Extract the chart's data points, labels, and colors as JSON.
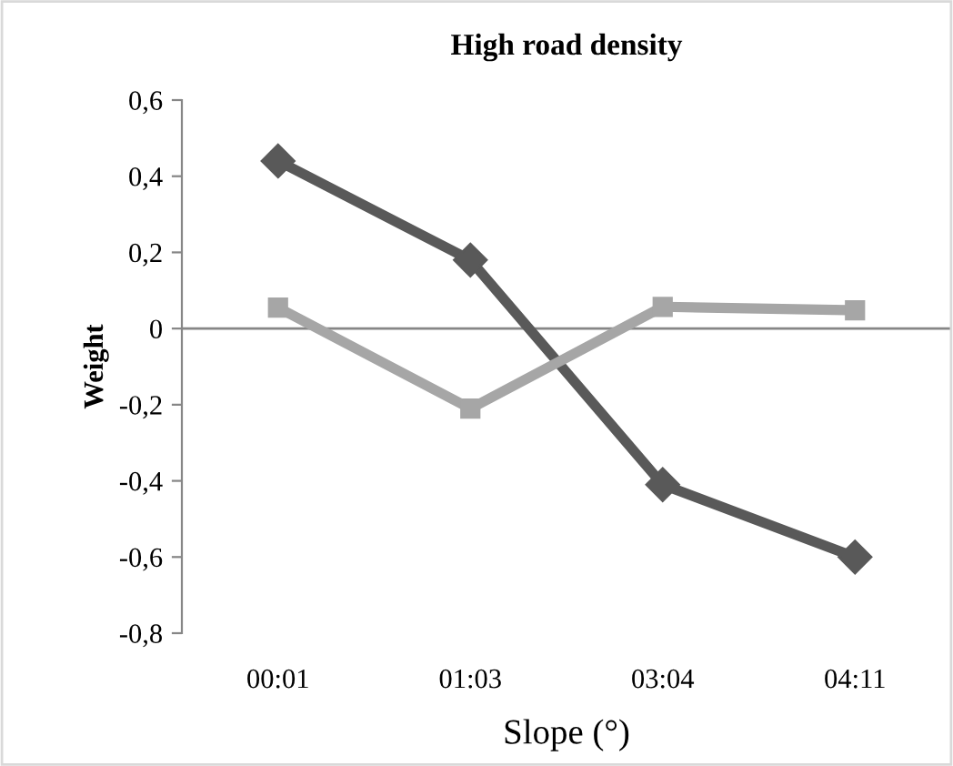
{
  "chart_data": {
    "type": "line",
    "title": "High road density",
    "xlabel": "Slope (°)",
    "ylabel": "Weight",
    "categories": [
      "00:01",
      "01:03",
      "03:04",
      "04:11"
    ],
    "series": [
      {
        "color": "#595959",
        "marker": "diamond",
        "values": [
          0.44,
          0.18,
          -0.41,
          -0.6
        ]
      },
      {
        "color": "#a6a6a6",
        "marker": "square",
        "values": [
          0.055,
          -0.21,
          0.057,
          0.048
        ]
      }
    ],
    "ylim": [
      -0.8,
      0.6
    ],
    "yticks": [
      {
        "value": -0.8,
        "label": "-0,8"
      },
      {
        "value": -0.6,
        "label": "-0,6"
      },
      {
        "value": -0.4,
        "label": "-0,4"
      },
      {
        "value": -0.2,
        "label": "-0,2"
      },
      0,
      {
        "value": 0.2,
        "label": "0,2"
      },
      {
        "value": 0.4,
        "label": "0,4"
      },
      {
        "value": 0.6,
        "label": "0,6"
      }
    ],
    "ref_lines": [
      {
        "axis": "y",
        "value": 0,
        "color": "#868686"
      }
    ],
    "grid": false,
    "legend": false,
    "line_style": "solid"
  }
}
